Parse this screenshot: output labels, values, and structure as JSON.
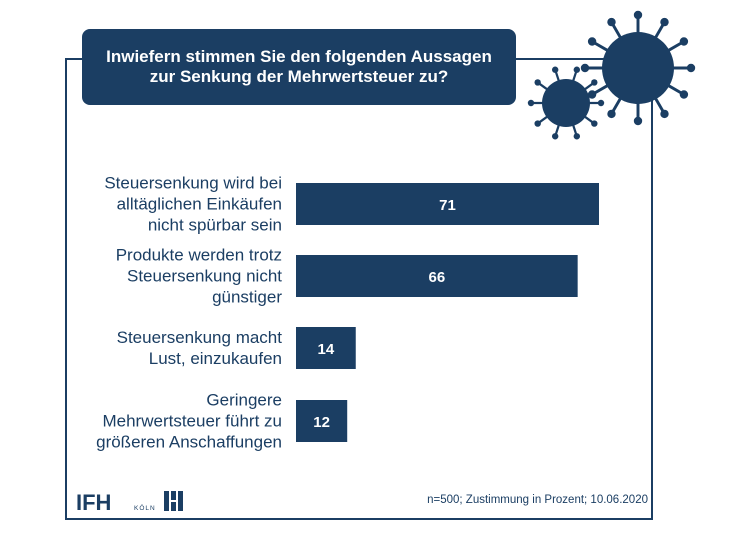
{
  "title": "Inwiefern stimmen Sie den folgenden Aussagen zur Senkung der Mehrwertsteuer zu?",
  "footnote": "n=500; Zustimmung in Prozent; 10.06.2020",
  "logo": {
    "name": "IFH",
    "sub": "KÖLN"
  },
  "colors": {
    "primary": "#1b3e63",
    "label_text": "#ffffff",
    "virus": "#1b3e63"
  },
  "chart_data": {
    "type": "bar",
    "orientation": "horizontal",
    "categories": [
      "Steuersenkung wird bei alltäglichen Einkäufen nicht spürbar sein",
      "Produkte werden trotz Steuersenkung nicht günstiger",
      "Steuersenkung macht Lust, einzukaufen",
      "Geringere Mehrwertsteuer führt zu größeren Anschaffungen"
    ],
    "category_lines": [
      [
        "Steuersenkung wird bei",
        "alltäglichen Einkäufen",
        "nicht spürbar sein"
      ],
      [
        "Produkte werden trotz",
        "Steuersenkung nicht",
        "günstiger"
      ],
      [
        "Steuersenkung macht",
        "Lust, einzukaufen"
      ],
      [
        "Geringere",
        "Mehrwertsteuer führt zu",
        "größeren Anschaffungen"
      ]
    ],
    "values": [
      71,
      66,
      14,
      12
    ],
    "data_labels": [
      "71",
      "66",
      "14",
      "12"
    ],
    "xlim": [
      0,
      71
    ],
    "grid": false,
    "legend": "none",
    "title": "Inwiefern stimmen Sie den folgenden Aussagen zur Senkung der Mehrwertsteuer zu?"
  }
}
